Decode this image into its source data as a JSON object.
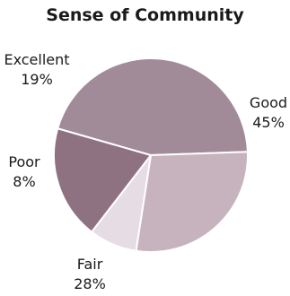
{
  "chart_data": {
    "type": "pie",
    "title": "Sense of Community",
    "slices": [
      {
        "label": "Good",
        "percent_label": "45%",
        "value": 45,
        "color": "#a18b98"
      },
      {
        "label": "Fair",
        "percent_label": "28%",
        "value": 28,
        "color": "#c7b3bd"
      },
      {
        "label": "Poor",
        "percent_label": "8%",
        "value": 8,
        "color": "#e6dce3"
      },
      {
        "label": "Excellent",
        "percent_label": "19%",
        "value": 19,
        "color": "#8f7282"
      }
    ]
  }
}
